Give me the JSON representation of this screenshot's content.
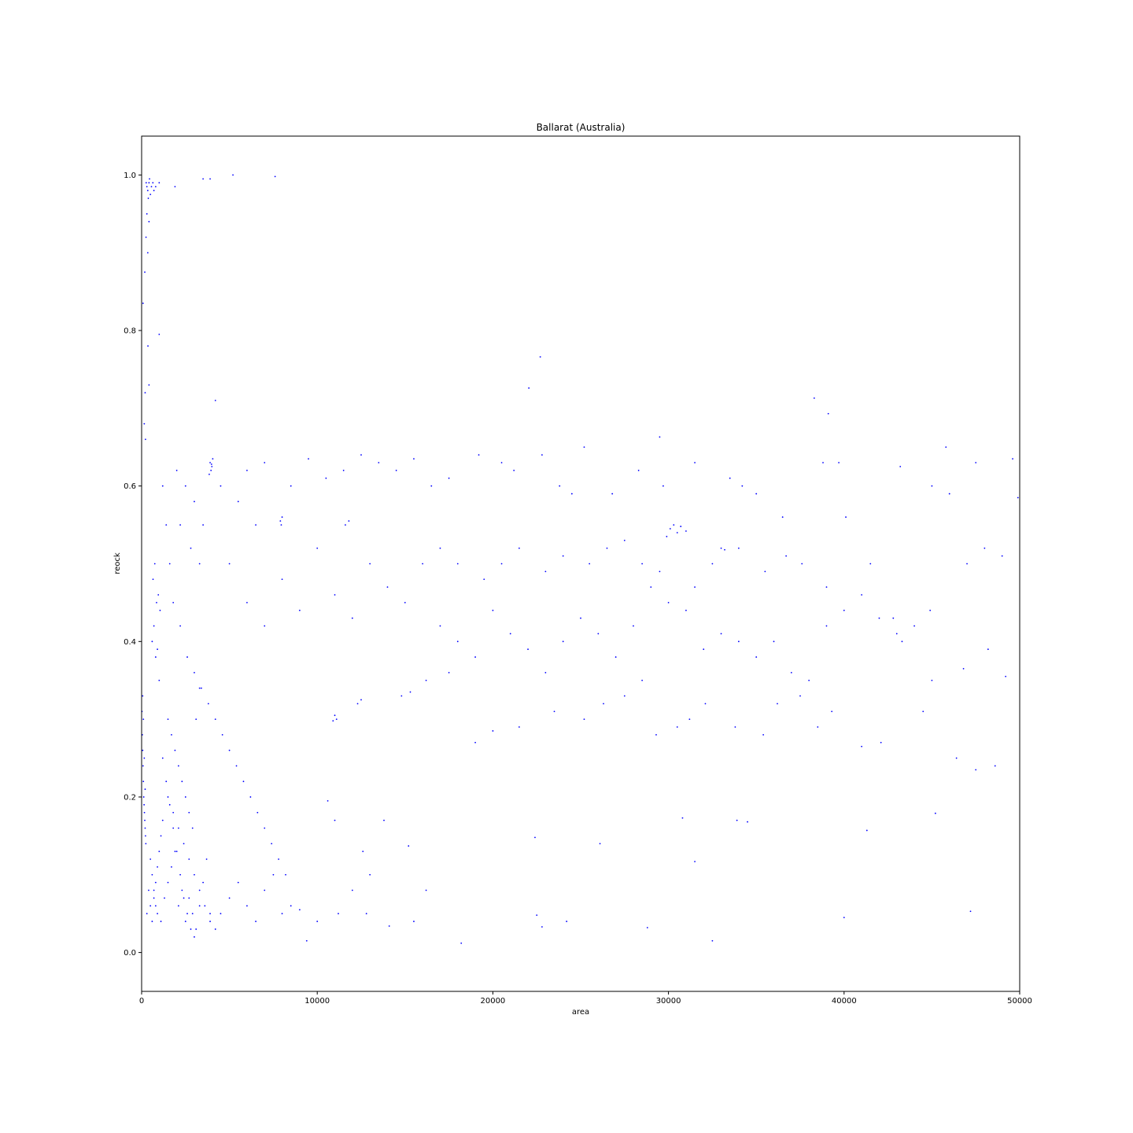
{
  "chart_data": {
    "type": "scatter",
    "title": "Ballarat (Australia)",
    "xlabel": "area",
    "ylabel": "reock",
    "xlim": [
      0,
      50000
    ],
    "ylim": [
      -0.05,
      1.05
    ],
    "xticks": [
      0,
      10000,
      20000,
      30000,
      40000,
      50000
    ],
    "xtick_labels": [
      "0",
      "10000",
      "20000",
      "30000",
      "40000",
      "50000"
    ],
    "yticks": [
      0.0,
      0.2,
      0.4,
      0.6,
      0.8,
      1.0
    ],
    "ytick_labels": [
      "0.0",
      "0.2",
      "0.4",
      "0.6",
      "0.8",
      "1.0"
    ],
    "grid": false,
    "marker_color": "#0000ff",
    "points": [
      [
        300,
        0.985
      ],
      [
        350,
        0.98
      ],
      [
        420,
        0.99
      ],
      [
        500,
        0.975
      ],
      [
        560,
        0.985
      ],
      [
        640,
        0.99
      ],
      [
        700,
        0.98
      ],
      [
        260,
        0.99
      ],
      [
        450,
        0.995
      ],
      [
        380,
        0.97
      ],
      [
        800,
        0.985
      ],
      [
        1000,
        0.99
      ],
      [
        1900,
        0.985
      ],
      [
        3500,
        0.995
      ],
      [
        3900,
        0.995
      ],
      [
        5200,
        1.0
      ],
      [
        7600,
        0.998
      ],
      [
        300,
        0.95
      ],
      [
        420,
        0.94
      ],
      [
        250,
        0.92
      ],
      [
        350,
        0.9
      ],
      [
        180,
        0.875
      ],
      [
        80,
        0.835
      ],
      [
        360,
        0.78
      ],
      [
        1000,
        0.795
      ],
      [
        200,
        0.72
      ],
      [
        420,
        0.73
      ],
      [
        150,
        0.68
      ],
      [
        220,
        0.66
      ],
      [
        4200,
        0.71
      ],
      [
        3900,
        0.63
      ],
      [
        4000,
        0.625
      ],
      [
        3950,
        0.62
      ],
      [
        4050,
        0.635
      ],
      [
        3850,
        0.615
      ],
      [
        3980,
        0.628
      ],
      [
        7900,
        0.555
      ],
      [
        8000,
        0.56
      ],
      [
        7950,
        0.55
      ],
      [
        11600,
        0.55
      ],
      [
        11800,
        0.555
      ],
      [
        22700,
        0.766
      ],
      [
        22050,
        0.726
      ],
      [
        38300,
        0.713
      ],
      [
        39100,
        0.693
      ],
      [
        29500,
        0.663
      ],
      [
        30100,
        0.545
      ],
      [
        30300,
        0.55
      ],
      [
        30500,
        0.54
      ],
      [
        29900,
        0.535
      ],
      [
        30700,
        0.548
      ],
      [
        31000,
        0.542
      ],
      [
        33000,
        0.52
      ],
      [
        33200,
        0.518
      ],
      [
        20,
        0.31
      ],
      [
        40,
        0.28
      ],
      [
        60,
        0.26
      ],
      [
        80,
        0.24
      ],
      [
        100,
        0.22
      ],
      [
        120,
        0.2
      ],
      [
        140,
        0.19
      ],
      [
        160,
        0.18
      ],
      [
        180,
        0.17
      ],
      [
        200,
        0.16
      ],
      [
        220,
        0.15
      ],
      [
        240,
        0.14
      ],
      [
        100,
        0.3
      ],
      [
        150,
        0.25
      ],
      [
        200,
        0.21
      ],
      [
        60,
        0.33
      ],
      [
        500,
        0.12
      ],
      [
        600,
        0.1
      ],
      [
        700,
        0.08
      ],
      [
        800,
        0.06
      ],
      [
        900,
        0.05
      ],
      [
        1100,
        0.04
      ],
      [
        1300,
        0.07
      ],
      [
        1500,
        0.09
      ],
      [
        1700,
        0.11
      ],
      [
        1900,
        0.13
      ],
      [
        2100,
        0.06
      ],
      [
        2300,
        0.08
      ],
      [
        2500,
        0.04
      ],
      [
        2700,
        0.07
      ],
      [
        2900,
        0.05
      ],
      [
        3100,
        0.03
      ],
      [
        3300,
        0.06
      ],
      [
        3500,
        0.09
      ],
      [
        3700,
        0.12
      ],
      [
        3900,
        0.05
      ],
      [
        600,
        0.4
      ],
      [
        700,
        0.42
      ],
      [
        800,
        0.38
      ],
      [
        900,
        0.39
      ],
      [
        1000,
        0.35
      ],
      [
        650,
        0.48
      ],
      [
        750,
        0.5
      ],
      [
        850,
        0.45
      ],
      [
        950,
        0.46
      ],
      [
        1050,
        0.44
      ],
      [
        1500,
        0.3
      ],
      [
        1700,
        0.28
      ],
      [
        1900,
        0.26
      ],
      [
        2100,
        0.24
      ],
      [
        2300,
        0.22
      ],
      [
        2500,
        0.2
      ],
      [
        2700,
        0.18
      ],
      [
        2900,
        0.16
      ],
      [
        3100,
        0.3
      ],
      [
        3300,
        0.34
      ],
      [
        5000,
        0.5
      ],
      [
        6000,
        0.45
      ],
      [
        7000,
        0.42
      ],
      [
        8000,
        0.48
      ],
      [
        9000,
        0.44
      ],
      [
        10000,
        0.52
      ],
      [
        11000,
        0.46
      ],
      [
        12000,
        0.43
      ],
      [
        13000,
        0.5
      ],
      [
        14000,
        0.47
      ],
      [
        15000,
        0.45
      ],
      [
        16000,
        0.5
      ],
      [
        17000,
        0.42
      ],
      [
        18000,
        0.4
      ],
      [
        19000,
        0.38
      ],
      [
        20000,
        0.44
      ],
      [
        21000,
        0.41
      ],
      [
        22000,
        0.39
      ],
      [
        23000,
        0.36
      ],
      [
        24000,
        0.4
      ],
      [
        25000,
        0.43
      ],
      [
        26000,
        0.41
      ],
      [
        27000,
        0.38
      ],
      [
        28000,
        0.42
      ],
      [
        29000,
        0.47
      ],
      [
        30000,
        0.45
      ],
      [
        31000,
        0.44
      ],
      [
        32000,
        0.39
      ],
      [
        33000,
        0.41
      ],
      [
        34000,
        0.4
      ],
      [
        35000,
        0.38
      ],
      [
        36000,
        0.4
      ],
      [
        37000,
        0.36
      ],
      [
        38000,
        0.35
      ],
      [
        39000,
        0.42
      ],
      [
        40000,
        0.44
      ],
      [
        41000,
        0.46
      ],
      [
        42000,
        0.43
      ],
      [
        43000,
        0.41
      ],
      [
        44000,
        0.42
      ],
      [
        45000,
        0.6
      ],
      [
        46000,
        0.59
      ],
      [
        47000,
        0.5
      ],
      [
        48000,
        0.52
      ],
      [
        49000,
        0.51
      ],
      [
        49900,
        0.585
      ],
      [
        49600,
        0.635
      ],
      [
        47500,
        0.63
      ],
      [
        45800,
        0.65
      ],
      [
        43200,
        0.625
      ],
      [
        9400,
        0.015
      ],
      [
        18200,
        0.012
      ],
      [
        32500,
        0.015
      ],
      [
        28800,
        0.032
      ],
      [
        22800,
        0.033
      ],
      [
        14100,
        0.034
      ],
      [
        24200,
        0.04
      ],
      [
        40000,
        0.045
      ],
      [
        47200,
        0.053
      ],
      [
        22400,
        0.148
      ],
      [
        26100,
        0.14
      ],
      [
        30800,
        0.173
      ],
      [
        33900,
        0.17
      ],
      [
        34500,
        0.168
      ],
      [
        41300,
        0.157
      ],
      [
        45200,
        0.179
      ],
      [
        31500,
        0.117
      ],
      [
        15200,
        0.137
      ],
      [
        11000,
        0.17
      ],
      [
        10600,
        0.195
      ],
      [
        11100,
        0.3
      ],
      [
        11000,
        0.305
      ],
      [
        10900,
        0.298
      ],
      [
        12300,
        0.32
      ],
      [
        12500,
        0.325
      ],
      [
        14800,
        0.33
      ],
      [
        15300,
        0.335
      ],
      [
        16200,
        0.35
      ],
      [
        17500,
        0.36
      ],
      [
        19000,
        0.27
      ],
      [
        20000,
        0.285
      ],
      [
        21500,
        0.29
      ],
      [
        23500,
        0.31
      ],
      [
        25200,
        0.3
      ],
      [
        26300,
        0.32
      ],
      [
        27500,
        0.33
      ],
      [
        28500,
        0.35
      ],
      [
        29300,
        0.28
      ],
      [
        30500,
        0.29
      ],
      [
        31200,
        0.3
      ],
      [
        32100,
        0.32
      ],
      [
        33800,
        0.29
      ],
      [
        35400,
        0.28
      ],
      [
        36200,
        0.32
      ],
      [
        37500,
        0.33
      ],
      [
        38500,
        0.29
      ],
      [
        39300,
        0.31
      ],
      [
        41000,
        0.265
      ],
      [
        42100,
        0.27
      ],
      [
        42800,
        0.43
      ],
      [
        43300,
        0.4
      ],
      [
        44500,
        0.31
      ],
      [
        45000,
        0.35
      ],
      [
        46800,
        0.365
      ],
      [
        47500,
        0.235
      ],
      [
        48600,
        0.24
      ],
      [
        49200,
        0.355
      ],
      [
        48200,
        0.39
      ],
      [
        46400,
        0.25
      ],
      [
        44900,
        0.44
      ],
      [
        6000,
        0.62
      ],
      [
        7000,
        0.63
      ],
      [
        8500,
        0.6
      ],
      [
        9500,
        0.635
      ],
      [
        10500,
        0.61
      ],
      [
        11500,
        0.62
      ],
      [
        12500,
        0.64
      ],
      [
        13500,
        0.63
      ],
      [
        14500,
        0.62
      ],
      [
        15500,
        0.635
      ],
      [
        16500,
        0.6
      ],
      [
        17500,
        0.61
      ],
      [
        19200,
        0.64
      ],
      [
        20500,
        0.63
      ],
      [
        21200,
        0.62
      ],
      [
        22800,
        0.64
      ],
      [
        23800,
        0.6
      ],
      [
        24500,
        0.59
      ],
      [
        25200,
        0.65
      ],
      [
        26800,
        0.59
      ],
      [
        28300,
        0.62
      ],
      [
        29700,
        0.6
      ],
      [
        31500,
        0.63
      ],
      [
        33500,
        0.61
      ],
      [
        34200,
        0.6
      ],
      [
        35000,
        0.59
      ],
      [
        36500,
        0.56
      ],
      [
        38800,
        0.63
      ],
      [
        39700,
        0.63
      ],
      [
        40100,
        0.56
      ],
      [
        2000,
        0.62
      ],
      [
        2500,
        0.6
      ],
      [
        3000,
        0.58
      ],
      [
        3500,
        0.55
      ],
      [
        4500,
        0.6
      ],
      [
        5500,
        0.58
      ],
      [
        6500,
        0.55
      ],
      [
        2200,
        0.55
      ],
      [
        2800,
        0.52
      ],
      [
        3300,
        0.5
      ],
      [
        1200,
        0.6
      ],
      [
        1400,
        0.55
      ],
      [
        1600,
        0.5
      ],
      [
        1800,
        0.45
      ],
      [
        2200,
        0.42
      ],
      [
        2600,
        0.38
      ],
      [
        3000,
        0.36
      ],
      [
        3400,
        0.34
      ],
      [
        3800,
        0.32
      ],
      [
        4200,
        0.3
      ],
      [
        4600,
        0.28
      ],
      [
        5000,
        0.26
      ],
      [
        5400,
        0.24
      ],
      [
        5800,
        0.22
      ],
      [
        6200,
        0.2
      ],
      [
        6600,
        0.18
      ],
      [
        7000,
        0.16
      ],
      [
        7400,
        0.14
      ],
      [
        7800,
        0.12
      ],
      [
        8200,
        0.1
      ],
      [
        4500,
        0.05
      ],
      [
        5000,
        0.07
      ],
      [
        5500,
        0.09
      ],
      [
        6000,
        0.06
      ],
      [
        6500,
        0.04
      ],
      [
        7000,
        0.08
      ],
      [
        7500,
        0.1
      ],
      [
        8000,
        0.05
      ],
      [
        8500,
        0.06
      ],
      [
        9000,
        0.055
      ],
      [
        10000,
        0.04
      ],
      [
        11200,
        0.05
      ],
      [
        12800,
        0.05
      ],
      [
        15500,
        0.04
      ],
      [
        16200,
        0.08
      ],
      [
        22500,
        0.048
      ],
      [
        13000,
        0.1
      ],
      [
        12600,
        0.13
      ],
      [
        13800,
        0.17
      ],
      [
        12000,
        0.08
      ],
      [
        1500,
        0.2
      ],
      [
        1800,
        0.18
      ],
      [
        2100,
        0.16
      ],
      [
        2400,
        0.14
      ],
      [
        2700,
        0.12
      ],
      [
        3000,
        0.1
      ],
      [
        3300,
        0.08
      ],
      [
        3600,
        0.06
      ],
      [
        3900,
        0.04
      ],
      [
        4200,
        0.03
      ],
      [
        1200,
        0.25
      ],
      [
        1400,
        0.22
      ],
      [
        1600,
        0.19
      ],
      [
        1800,
        0.16
      ],
      [
        2000,
        0.13
      ],
      [
        2200,
        0.1
      ],
      [
        2400,
        0.07
      ],
      [
        2600,
        0.05
      ],
      [
        2800,
        0.03
      ],
      [
        3000,
        0.02
      ],
      [
        300,
        0.05
      ],
      [
        400,
        0.08
      ],
      [
        500,
        0.06
      ],
      [
        600,
        0.04
      ],
      [
        700,
        0.07
      ],
      [
        800,
        0.09
      ],
      [
        900,
        0.11
      ],
      [
        1000,
        0.13
      ],
      [
        1100,
        0.15
      ],
      [
        1200,
        0.17
      ],
      [
        17000,
        0.52
      ],
      [
        18000,
        0.5
      ],
      [
        19500,
        0.48
      ],
      [
        20500,
        0.5
      ],
      [
        21500,
        0.52
      ],
      [
        23000,
        0.49
      ],
      [
        24000,
        0.51
      ],
      [
        25500,
        0.5
      ],
      [
        26500,
        0.52
      ],
      [
        27500,
        0.53
      ],
      [
        28500,
        0.5
      ],
      [
        29500,
        0.49
      ],
      [
        31500,
        0.47
      ],
      [
        32500,
        0.5
      ],
      [
        34000,
        0.52
      ],
      [
        35500,
        0.49
      ],
      [
        36700,
        0.51
      ],
      [
        37600,
        0.5
      ],
      [
        39000,
        0.47
      ],
      [
        41500,
        0.5
      ]
    ]
  }
}
